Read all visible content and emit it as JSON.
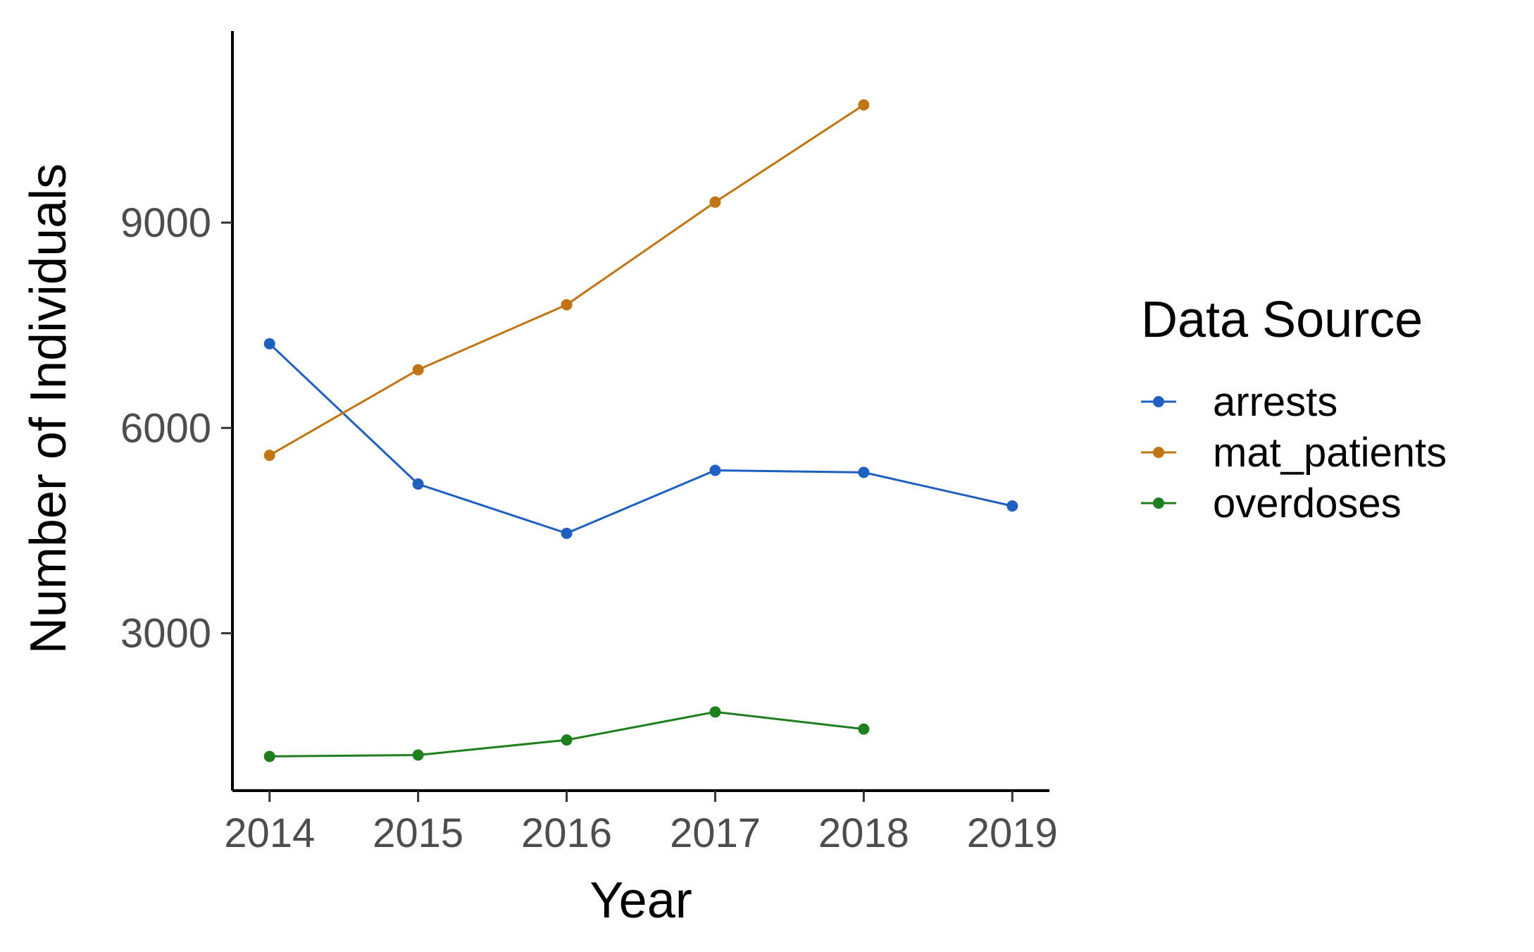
{
  "chart_data": {
    "type": "line",
    "title": "",
    "xlabel": "Year",
    "ylabel": "Number of Individuals",
    "x_ticks": [
      "2014",
      "2015",
      "2016",
      "2017",
      "2018",
      "2019"
    ],
    "y_ticks": [
      3000,
      6000,
      9000
    ],
    "y_tick_labels": [
      "3000",
      "6000",
      "9000"
    ],
    "xlim": [
      2013.75,
      2019.25
    ],
    "ylim": [
      700,
      11800
    ],
    "grid": false,
    "legend": {
      "title": "Data Source",
      "position": "right"
    },
    "series": [
      {
        "name": "arrests",
        "color": "#1f5fbf",
        "x": [
          2014,
          2015,
          2016,
          2017,
          2018,
          2019
        ],
        "y": [
          7230,
          5180,
          4460,
          5380,
          5350,
          4860
        ]
      },
      {
        "name": "mat_patients",
        "color": "#c07512",
        "x": [
          2014,
          2015,
          2016,
          2017,
          2018
        ],
        "y": [
          5600,
          6850,
          7800,
          9300,
          10720
        ]
      },
      {
        "name": "overdoses",
        "color": "#1f7f1f",
        "x": [
          2014,
          2015,
          2016,
          2017,
          2018
        ],
        "y": [
          1200,
          1220,
          1440,
          1850,
          1600
        ]
      }
    ]
  }
}
